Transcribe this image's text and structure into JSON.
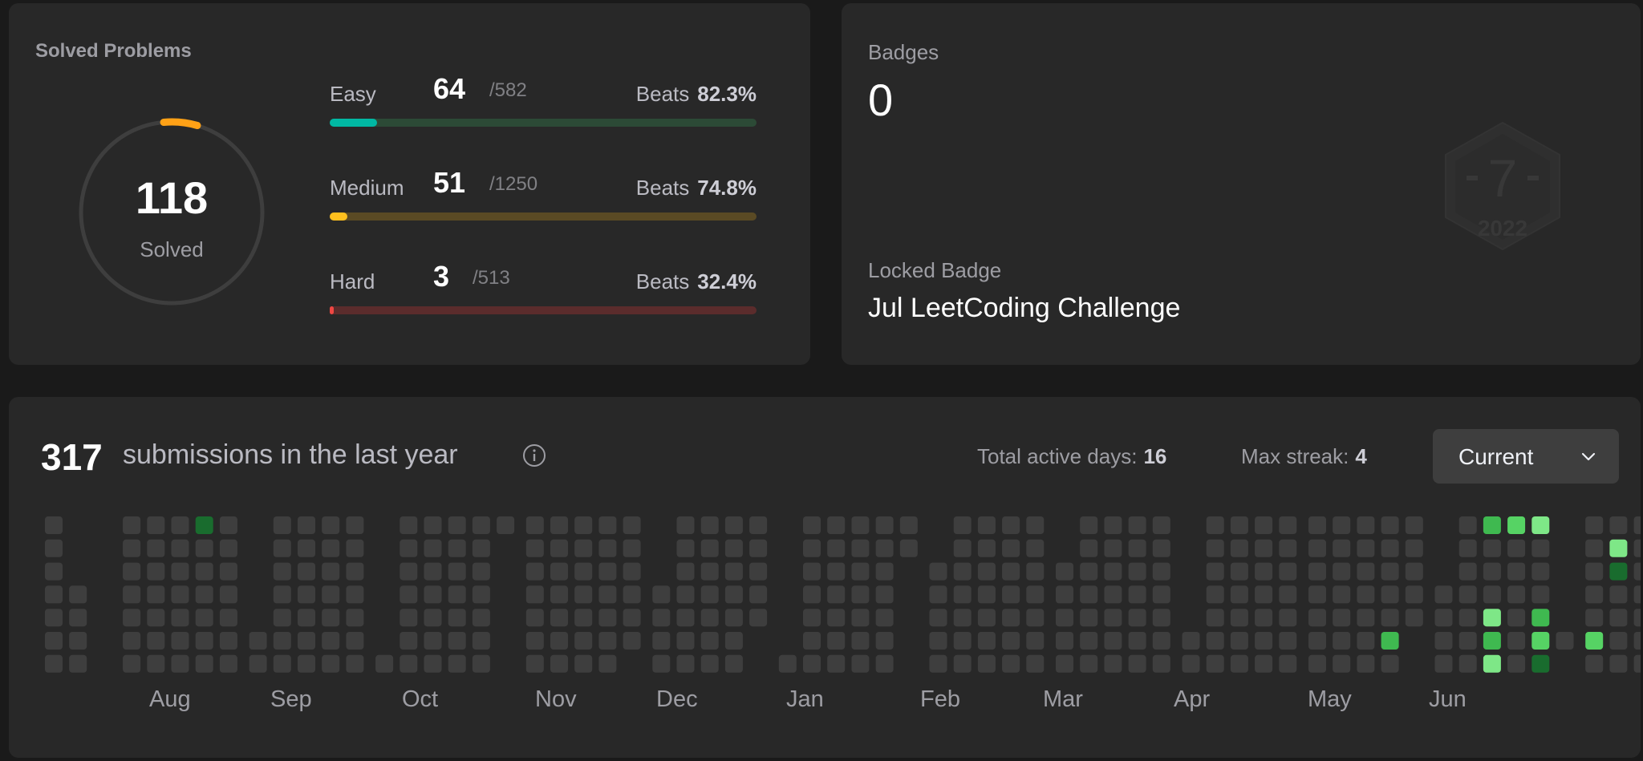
{
  "solved": {
    "title": "Solved Problems",
    "count": "118",
    "label": "Solved",
    "levels": [
      {
        "name": "Easy",
        "solved": "64",
        "total": "/582",
        "beats_label": "Beats",
        "beats": "82.3%",
        "fraction": 0.11,
        "color": "#00b8a3",
        "track": "#2c4a36"
      },
      {
        "name": "Medium",
        "solved": "51",
        "total": "/1250",
        "beats_label": "Beats",
        "beats": "74.8%",
        "fraction": 0.041,
        "color": "#ffc01e",
        "track": "#5a4a24"
      },
      {
        "name": "Hard",
        "solved": "3",
        "total": "/513",
        "beats_label": "Beats",
        "beats": "32.4%",
        "fraction": 0.006,
        "color": "#ef4743",
        "track": "#5b2c2c"
      }
    ]
  },
  "badges": {
    "label": "Badges",
    "count": "0",
    "locked_label": "Locked Badge",
    "locked_name": "Jul LeetCoding Challenge",
    "badge_digit": "7",
    "badge_year": "2022"
  },
  "calendar": {
    "submissions": "317",
    "submissions_text": "submissions in the last year",
    "active_days_label": "Total active days:",
    "active_days": "16",
    "max_streak_label": "Max streak:",
    "max_streak": "4",
    "dropdown_value": "Current",
    "months": [
      "Aug",
      "Sep",
      "Oct",
      "Nov",
      "Dec",
      "Jan",
      "Feb",
      "Mar",
      "Apr",
      "May",
      "Jun"
    ],
    "colors": {
      "empty": "#3e3e3e",
      "level1": "#196c2e",
      "level2": "#2ea043",
      "level3": "#3fb950",
      "level4": "#56d364",
      "level5": "#7ee787"
    }
  }
}
